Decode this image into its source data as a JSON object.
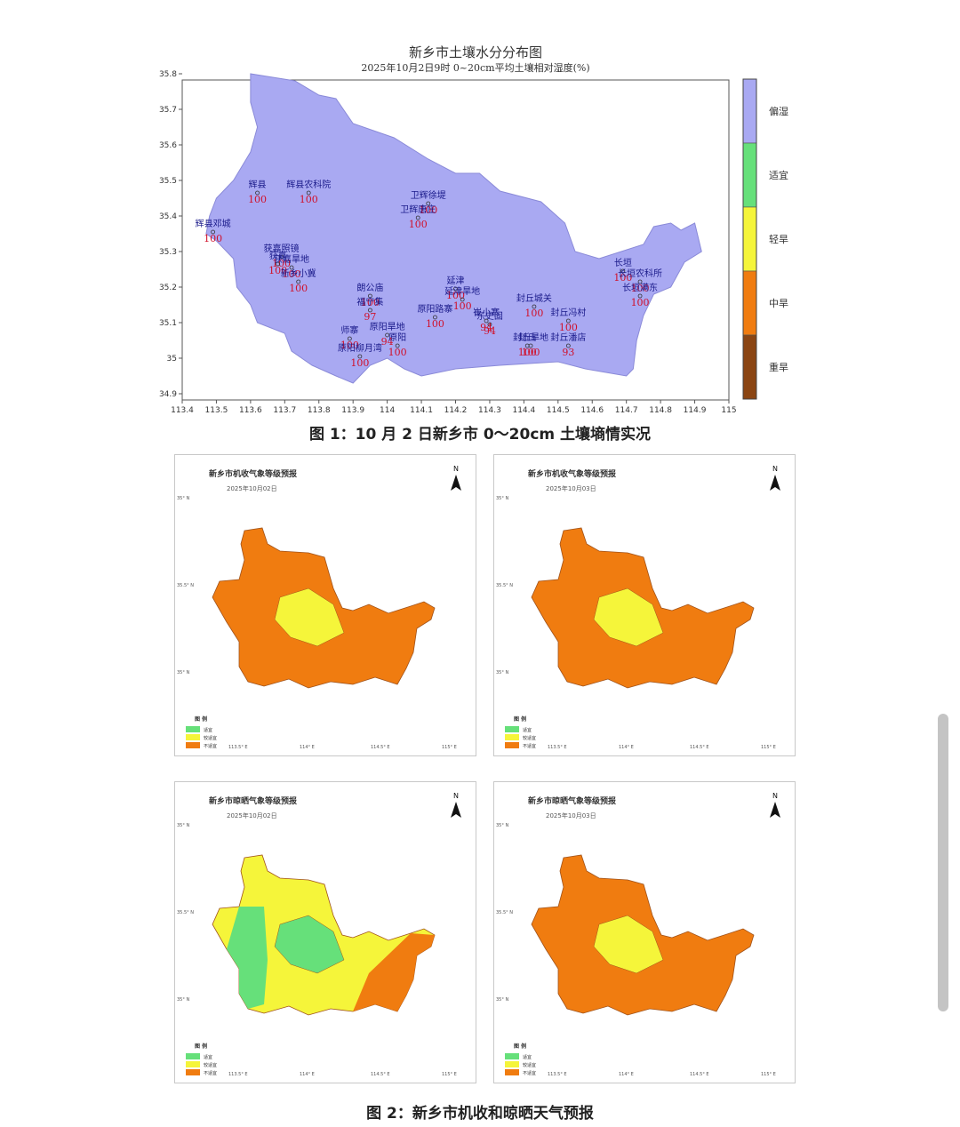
{
  "main_map": {
    "title": "新乡市土壤水分分布图",
    "subtitle": "2025年10月2日9时 0~20cm平均土壤相对湿度(%)",
    "x_ticks": [
      "113.4",
      "113.5",
      "113.6",
      "113.7",
      "113.8",
      "113.9",
      "114",
      "114.1",
      "114.2",
      "114.3",
      "114.4",
      "114.5",
      "114.6",
      "114.7",
      "114.8",
      "114.9",
      "115"
    ],
    "y_ticks": [
      "35.8",
      "35.7",
      "35.6",
      "35.5",
      "35.4",
      "35.3",
      "35.2",
      "35.1",
      "35",
      "34.9"
    ],
    "legend": [
      {
        "label": "偏湿",
        "color": "#a9a9f2"
      },
      {
        "label": "适宜",
        "color": "#66e07a"
      },
      {
        "label": "轻旱",
        "color": "#f5f53a"
      },
      {
        "label": "中旱",
        "color": "#f07c10"
      },
      {
        "label": "重旱",
        "color": "#8b4513"
      }
    ],
    "region_color": "#a9a9f2",
    "stations": [
      {
        "name": "辉县",
        "value": "100",
        "lon": 113.62,
        "lat": 35.46
      },
      {
        "name": "辉县农科院",
        "value": "100",
        "lon": 113.77,
        "lat": 35.46
      },
      {
        "name": "辉县邓城",
        "value": "100",
        "lon": 113.49,
        "lat": 35.35
      },
      {
        "name": "获嘉照镜",
        "value": "100",
        "lon": 113.69,
        "lat": 35.28
      },
      {
        "name": "获嘉",
        "value": "100",
        "lon": 113.68,
        "lat": 35.26
      },
      {
        "name": "获嘉旱地",
        "value": "100",
        "lon": 113.72,
        "lat": 35.25
      },
      {
        "name": "新乡小冀",
        "value": "100",
        "lon": 113.74,
        "lat": 35.21
      },
      {
        "name": "卫辉徐堤",
        "value": "100",
        "lon": 114.12,
        "lat": 35.43
      },
      {
        "name": "卫辉唐庄",
        "value": "100",
        "lon": 114.09,
        "lat": 35.39
      },
      {
        "name": "朗公庙",
        "value": "100",
        "lon": 113.95,
        "lat": 35.17
      },
      {
        "name": "福宁集",
        "value": "97",
        "lon": 113.95,
        "lat": 35.13
      },
      {
        "name": "延津",
        "value": "100",
        "lon": 114.2,
        "lat": 35.19
      },
      {
        "name": "延津旱地",
        "value": "100",
        "lon": 114.22,
        "lat": 35.16
      },
      {
        "name": "原阳路寨",
        "value": "100",
        "lon": 114.14,
        "lat": 35.11
      },
      {
        "name": "东史固",
        "value": "94",
        "lon": 114.3,
        "lat": 35.09
      },
      {
        "name": "崔小寨",
        "value": "94",
        "lon": 114.29,
        "lat": 35.1
      },
      {
        "name": "封丘城关",
        "value": "100",
        "lon": 114.43,
        "lat": 35.14
      },
      {
        "name": "封丘冯村",
        "value": "100",
        "lon": 114.53,
        "lat": 35.1
      },
      {
        "name": "封丘潘店",
        "value": "93",
        "lon": 114.53,
        "lat": 35.03
      },
      {
        "name": "封丘旱地",
        "value": "100",
        "lon": 114.42,
        "lat": 35.03
      },
      {
        "name": "封丘",
        "value": "100",
        "lon": 114.41,
        "lat": 35.03
      },
      {
        "name": "原阳旱地",
        "value": "94",
        "lon": 114.0,
        "lat": 35.06
      },
      {
        "name": "原阳",
        "value": "100",
        "lon": 114.03,
        "lat": 35.03
      },
      {
        "name": "师寨",
        "value": "100",
        "lon": 113.89,
        "lat": 35.05
      },
      {
        "name": "原阳柳月湾",
        "value": "100",
        "lon": 113.92,
        "lat": 35.0
      },
      {
        "name": "长垣",
        "value": "100",
        "lon": 114.69,
        "lat": 35.24
      },
      {
        "name": "长垣农科所",
        "value": "100",
        "lon": 114.74,
        "lat": 35.21
      },
      {
        "name": "长垣满东",
        "value": "100",
        "lon": 114.74,
        "lat": 35.17
      }
    ]
  },
  "caption1": "图 1：10 月 2 日新乡市 0～20cm 土壤墒情实况",
  "caption2": "图 2：新乡市机收和晾晒天气预报",
  "panels": [
    {
      "title": "新乡市机收气象等级预报",
      "date": "2025年10月02日",
      "legend_title": "图 例",
      "legend": [
        "适宜",
        "较适宜",
        "不适宜"
      ],
      "dominant": "#f07c10",
      "accent": "#f5f53a"
    },
    {
      "title": "新乡市机收气象等级预报",
      "date": "2025年10月03日",
      "legend_title": "图 例",
      "legend": [
        "适宜",
        "较适宜",
        "不适宜"
      ],
      "dominant": "#f07c10",
      "accent": "#f5f53a"
    },
    {
      "title": "新乡市晾晒气象等级预报",
      "date": "2025年10月02日",
      "legend_title": "图 例",
      "legend": [
        "适宜",
        "较适宜",
        "不适宜"
      ],
      "dominant": "#f5f53a",
      "accent": "#66e07a"
    },
    {
      "title": "新乡市晾晒气象等级预报",
      "date": "2025年10月03日",
      "legend_title": "图 例",
      "legend": [
        "适宜",
        "较适宜",
        "不适宜"
      ],
      "dominant": "#f07c10",
      "accent": "#f5f53a"
    }
  ],
  "legend_colors": [
    "#66e07a",
    "#f5f53a",
    "#f07c10"
  ],
  "north_label": "N",
  "panel_y_ticks": [
    "35° N",
    "35.5° N",
    "35° N",
    "34.5° N"
  ],
  "panel_x_ticks": [
    "113.5° E",
    "114° E",
    "114.5° E",
    "115° E"
  ]
}
